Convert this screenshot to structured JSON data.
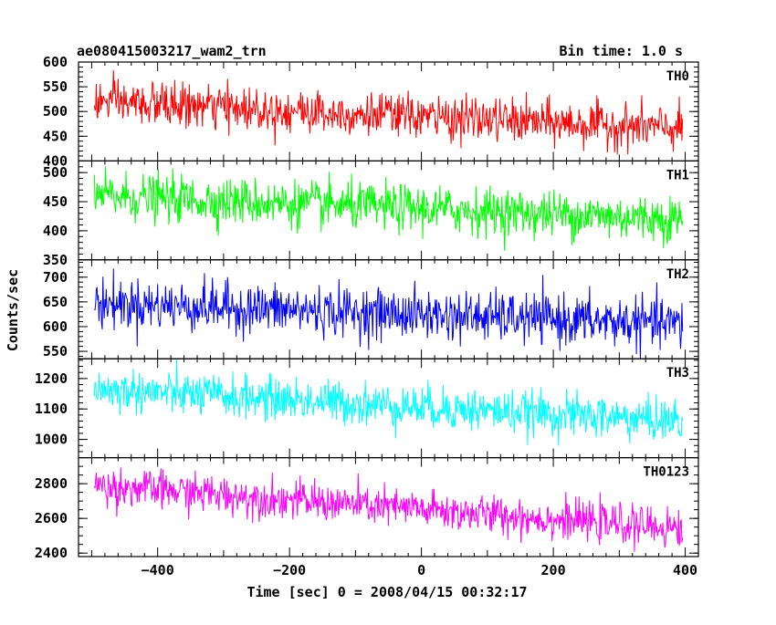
{
  "chart_data": {
    "type": "line",
    "title": "ae080415003217_wam2_trn",
    "subtitle": "Bin time: 1.0 s",
    "xlabel": "Time [sec] 0 = 2008/04/15 00:32:17",
    "ylabel": "Counts/sec",
    "xlim": [
      -520,
      420
    ],
    "x_ticks": [
      -400,
      -200,
      0,
      200,
      400
    ],
    "x_tick_labels": [
      "−400",
      "−200",
      "0",
      "200",
      "400"
    ],
    "x_start": -496,
    "x_end": 396,
    "x_step": 1,
    "grid": false,
    "legend": "none",
    "panels": [
      {
        "name": "TH0",
        "color": "#ff0000",
        "ylim": [
          400,
          600
        ],
        "y_ticks": [
          400,
          450,
          500,
          550,
          600
        ],
        "y_tick_labels": [
          "400",
          "450",
          "500",
          "550",
          "600"
        ],
        "start_mean": 520,
        "end_mean": 465,
        "noise_sd": 22
      },
      {
        "name": "TH1",
        "color": "#00ff00",
        "ylim": [
          350,
          520
        ],
        "y_ticks": [
          350,
          400,
          450,
          500
        ],
        "y_tick_labels": [
          "350",
          "400",
          "450",
          "500"
        ],
        "start_mean": 460,
        "end_mean": 420,
        "noise_sd": 20
      },
      {
        "name": "TH2",
        "color": "#0000ff",
        "ylim": [
          535,
          735
        ],
        "y_ticks": [
          550,
          600,
          650,
          700
        ],
        "y_tick_labels": [
          "550",
          "600",
          "650",
          "700"
        ],
        "start_mean": 648,
        "end_mean": 605,
        "noise_sd": 25
      },
      {
        "name": "TH3",
        "color": "#00ffff",
        "ylim": [
          940,
          1265
        ],
        "y_ticks": [
          1000,
          1100,
          1200
        ],
        "y_tick_labels": [
          "1000",
          "1100",
          "1200"
        ],
        "start_mean": 1165,
        "end_mean": 1060,
        "noise_sd": 35
      },
      {
        "name": "TH0123",
        "color": "#ff00ff",
        "ylim": [
          2380,
          2950
        ],
        "y_ticks": [
          2400,
          2600,
          2800
        ],
        "y_tick_labels": [
          "2400",
          "2600",
          "2800"
        ],
        "start_mean": 2790,
        "end_mean": 2540,
        "noise_sd": 55
      }
    ]
  }
}
